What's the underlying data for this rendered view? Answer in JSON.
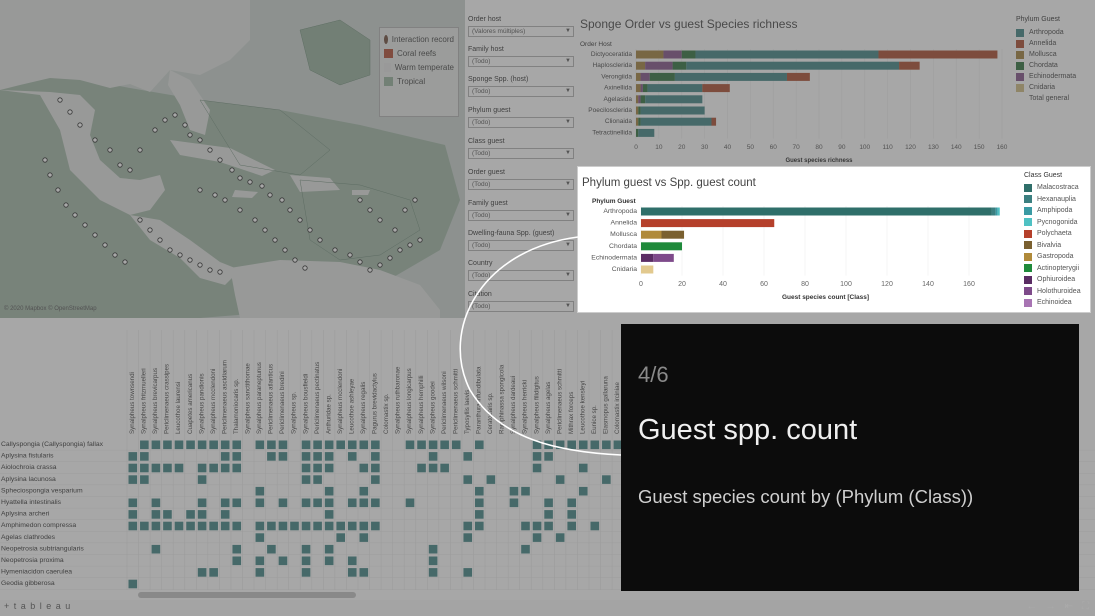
{
  "map": {
    "legend": [
      {
        "label": "Interaction record",
        "color": "#7a5a4a"
      },
      {
        "label": "Coral reefs",
        "color": "#b85a43"
      },
      {
        "label": "Warm temperate",
        "color": "#e6e6e6"
      },
      {
        "label": "Tropical",
        "color": "#9fb9a5"
      }
    ],
    "copyright": "© 2020 Mapbox © OpenStreetMap"
  },
  "filters": [
    {
      "label": "Order host",
      "value": "(Valores múltiples)"
    },
    {
      "label": "Family host",
      "value": "(Todo)"
    },
    {
      "label": "Sponge Spp. (host)",
      "value": "(Todo)"
    },
    {
      "label": "Phylum guest",
      "value": "(Todo)"
    },
    {
      "label": "Class guest",
      "value": "(Todo)"
    },
    {
      "label": "Order guest",
      "value": "(Todo)"
    },
    {
      "label": "Family guest",
      "value": "(Todo)"
    },
    {
      "label": "Dwelling-fauna Spp. (guest)",
      "value": "(Todo)"
    },
    {
      "label": "Country",
      "value": "(Todo)"
    },
    {
      "label": "Citation",
      "value": "(Todo)"
    }
  ],
  "chart1": {
    "title": "Sponge Order vs guest Species richness",
    "axis_label": "Order Host",
    "x_label": "Guest species richness",
    "legend_title": "Phylum Guest",
    "legend": [
      {
        "label": "Arthropoda",
        "color": "#4f8f8f"
      },
      {
        "label": "Annelida",
        "color": "#b25a3e"
      },
      {
        "label": "Mollusca",
        "color": "#a98a4c"
      },
      {
        "label": "Chordata",
        "color": "#3e7d4c"
      },
      {
        "label": "Echinodermata",
        "color": "#8c5f93"
      },
      {
        "label": "Cnidaria",
        "color": "#d4c28a"
      },
      {
        "label": "Total general",
        "color": "#ffffff"
      }
    ]
  },
  "chart2": {
    "title": "Phylum guest vs Spp. guest count",
    "axis_label": "Phylum Guest",
    "legend_title": "Class Guest",
    "legend": [
      {
        "label": "Malacostraca",
        "color": "#2f6f6a"
      },
      {
        "label": "Hexanauplia",
        "color": "#3b7f80"
      },
      {
        "label": "Amphipoda",
        "color": "#3a9aa3"
      },
      {
        "label": "Pycnogonida",
        "color": "#4fc1c3"
      },
      {
        "label": "Polychaeta",
        "color": "#b5402b"
      },
      {
        "label": "Bivalvia",
        "color": "#7a6030"
      },
      {
        "label": "Gastropoda",
        "color": "#b08a3a"
      },
      {
        "label": "Actinopterygii",
        "color": "#1f8a3b"
      },
      {
        "label": "Ophiuroidea",
        "color": "#5a2c63"
      },
      {
        "label": "Holothuroidea",
        "color": "#7e4a8a"
      },
      {
        "label": "Echinoidea",
        "color": "#a874b3"
      }
    ]
  },
  "chart_data": [
    {
      "type": "bar",
      "title": "Sponge Order vs guest Species richness",
      "xlabel": "Guest species richness",
      "ylabel": "Order Host",
      "xlim": [
        0,
        160
      ],
      "categories": [
        "Dictyoceratida",
        "Haplosclerida",
        "Verongiida",
        "Axinellida",
        "Agelasida",
        "Poecilosclerida",
        "Clionaida",
        "Tetractinellida"
      ],
      "series": [
        {
          "name": "Arthropoda",
          "values": [
            0,
            0,
            0,
            0,
            0,
            0,
            0,
            0
          ]
        },
        {
          "name": "Mollusca",
          "values": [
            12,
            4,
            2,
            2,
            1,
            1,
            1,
            0
          ]
        },
        {
          "name": "Echinodermata",
          "values": [
            8,
            12,
            4,
            1,
            1,
            0,
            0,
            0
          ]
        },
        {
          "name": "Chordata",
          "values": [
            6,
            6,
            11,
            2,
            2,
            1,
            1,
            1
          ]
        },
        {
          "name": "Arthropoda",
          "values": [
            80,
            93,
            49,
            24,
            25,
            28,
            31,
            7
          ]
        },
        {
          "name": "Annelida",
          "values": [
            52,
            9,
            10,
            12,
            0,
            0,
            2,
            0
          ]
        }
      ],
      "xticks": [
        0,
        10,
        20,
        30,
        40,
        50,
        60,
        70,
        80,
        90,
        100,
        110,
        120,
        130,
        140,
        150,
        160
      ]
    },
    {
      "type": "bar",
      "title": "Phylum guest vs Spp. guest count",
      "xlabel": "Guest species count [Class]",
      "ylabel": "Phylum Guest",
      "xlim": [
        0,
        180
      ],
      "categories": [
        "Arthropoda",
        "Annelida",
        "Mollusca",
        "Chordata",
        "Echinodermata",
        "Cnidaria"
      ],
      "series": [
        {
          "name": "Malacostraca",
          "values": [
            171,
            0,
            0,
            0,
            0,
            0
          ]
        },
        {
          "name": "Hexanauplia",
          "values": [
            2,
            0,
            0,
            0,
            0,
            0
          ]
        },
        {
          "name": "Amphipoda",
          "values": [
            1,
            0,
            0,
            0,
            0,
            0
          ]
        },
        {
          "name": "Pycnogonida",
          "values": [
            1,
            0,
            0,
            0,
            0,
            0
          ]
        },
        {
          "name": "Polychaeta",
          "values": [
            0,
            65,
            0,
            0,
            0,
            0
          ]
        },
        {
          "name": "Gastropoda",
          "values": [
            0,
            0,
            10,
            0,
            0,
            0
          ]
        },
        {
          "name": "Bivalvia",
          "values": [
            0,
            0,
            11,
            0,
            0,
            0
          ]
        },
        {
          "name": "Actinopterygii",
          "values": [
            0,
            0,
            0,
            20,
            0,
            0
          ]
        },
        {
          "name": "Ophiuroidea",
          "values": [
            0,
            0,
            0,
            0,
            6,
            0
          ]
        },
        {
          "name": "Holothuroidea",
          "values": [
            0,
            0,
            0,
            0,
            10,
            0
          ]
        },
        {
          "name": "Cnidaria",
          "values": [
            0,
            0,
            0,
            0,
            0,
            6
          ]
        }
      ],
      "xticks": [
        0,
        20,
        40,
        60,
        80,
        100,
        120,
        140,
        160
      ]
    }
  ],
  "matrix": {
    "rows": [
      "Callyspongia (Callyspongia) fallax",
      "Aplysina fistularis",
      "Aiolochroia crassa",
      "Aplysina lacunosa",
      "Spheciospongia vesparium",
      "Hyattella intestinalis",
      "Aplysina archeri",
      "Amphimedon compressa",
      "Agelas clathrodes",
      "Neopetrosia subtriangularis",
      "Neopetrosia proxima",
      "Hymeniacidon caerulea",
      "Geodia gibberosa"
    ],
    "columns": [
      "Synalpheus townsendi",
      "Synalpheus fritzmuelleri",
      "Synalpheus brevicarpus",
      "Periclimenaeus crassipes",
      "Leucothoe laurensi",
      "Cuapetes americanus",
      "Synalpheus pandionis",
      "Synalpheus mcclendoni",
      "Periclimenaeus ascidiarum",
      "Thalamoniocaris sp.",
      "Synalpheus sanctithomae",
      "Synalpheus paraneptunus",
      "Periclimenaeus atlanticus",
      "Periclimenaeus bredini",
      "Synalpheus sp.",
      "Synalpheus bousfieldi",
      "Periclimenaeus pectinatus",
      "Anthuridae sp.",
      "Synalpheus mcclendoni",
      "Leucothoe ashleyae",
      "Synalpheus regalis",
      "Pagurus brevidactylus",
      "Colomastix sp.",
      "Synalpheus ruthbaronae",
      "Synalpheus longicarpus",
      "Synalpheus hemphilli",
      "Synalpheus goodei",
      "Periclimenaeus wilsoni",
      "Periclimenaeus schmitti",
      "Typosyllis laevis",
      "Paranthura infundibulata",
      "Ceratocaris sp.",
      "Ramphinassa spongicola",
      "Synalpheus dardeaui",
      "Synalpheus herricki",
      "Synalpheus filidigitus",
      "Synalpheus agelas",
      "Periclimenaeus schmitti",
      "Mithrax forceps",
      "Leucothoe kensleyi",
      "Eunice sp.",
      "Elasmopus gallaruna",
      "Colomastix irciniae"
    ],
    "cell_color": "#4f8f8f"
  },
  "card": {
    "step": "4/6",
    "title": "Guest spp. count",
    "description": "Guest species count by (Phylum (Class))"
  },
  "footer": {
    "brand": "+ t a b l e a u"
  }
}
